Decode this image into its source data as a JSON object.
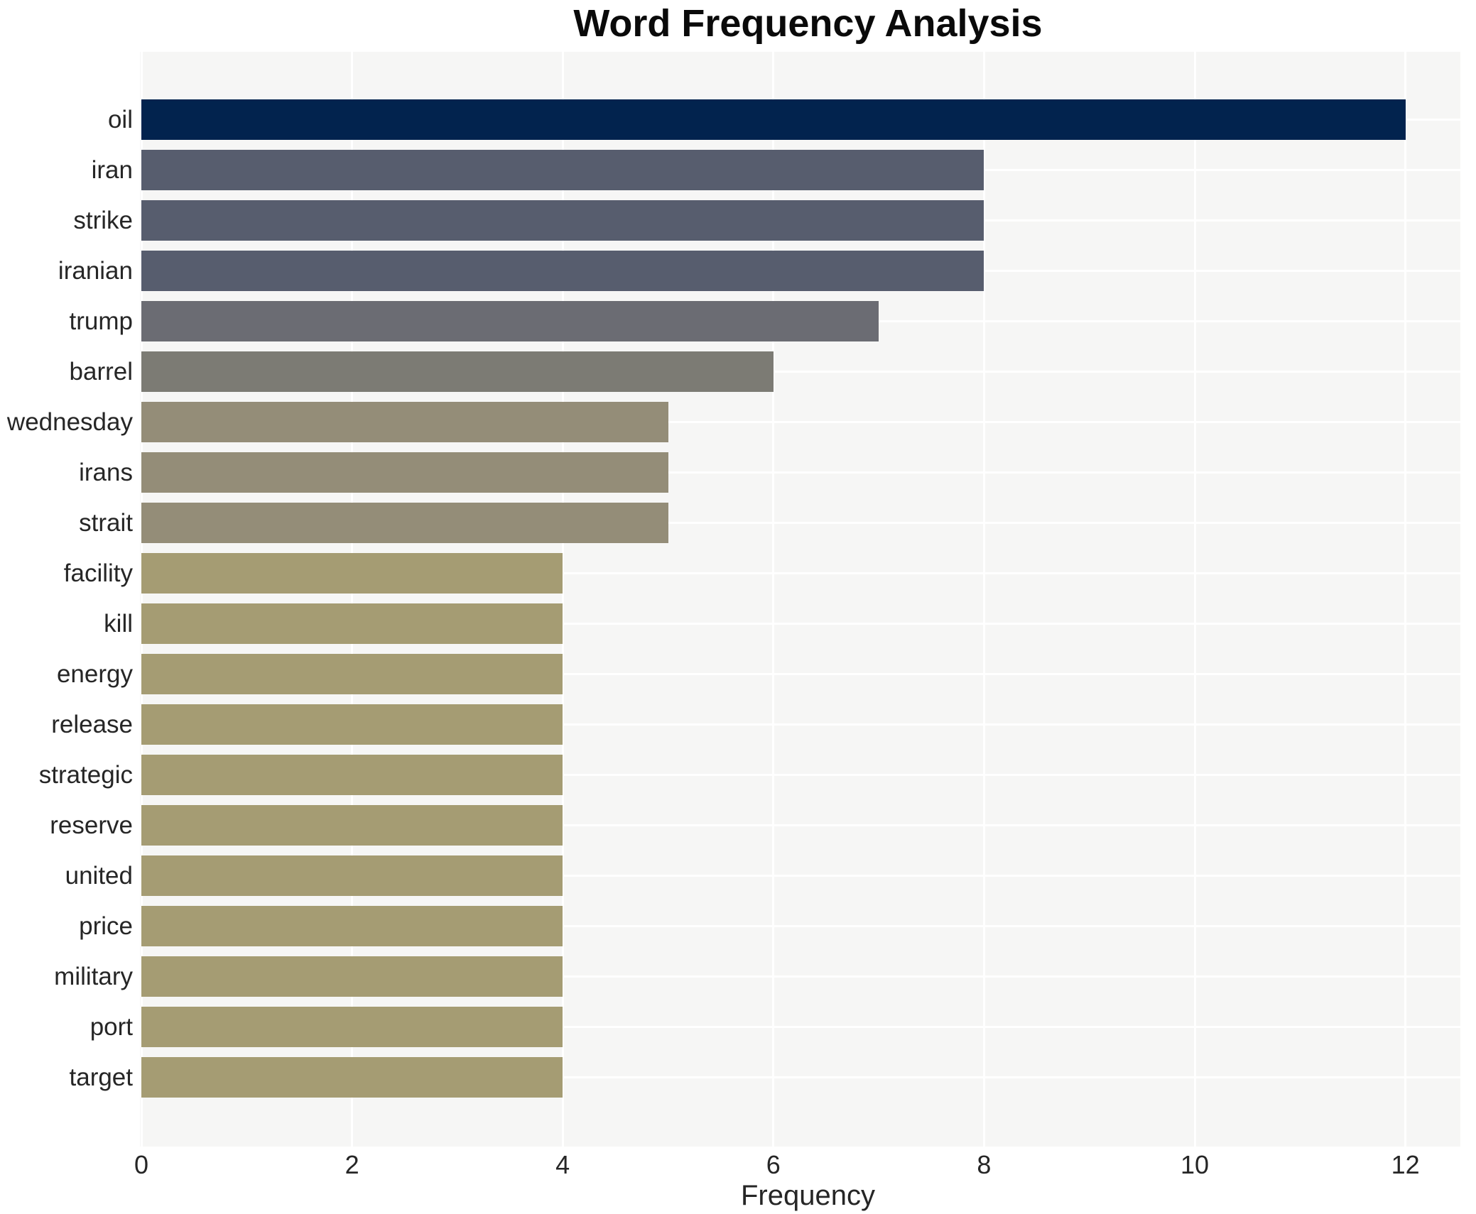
{
  "figure": {
    "title": "Word Frequency Analysis",
    "xlabel": "Frequency"
  },
  "chart_data": {
    "type": "bar",
    "orientation": "horizontal",
    "title": "Word Frequency Analysis",
    "xlabel": "Frequency",
    "ylabel": "",
    "categories": [
      "oil",
      "iran",
      "strike",
      "iranian",
      "trump",
      "barrel",
      "wednesday",
      "irans",
      "strait",
      "facility",
      "kill",
      "energy",
      "release",
      "strategic",
      "reserve",
      "united",
      "price",
      "military",
      "port",
      "target"
    ],
    "values": [
      12,
      8,
      8,
      8,
      7,
      6,
      5,
      5,
      5,
      4,
      4,
      4,
      4,
      4,
      4,
      4,
      4,
      4,
      4,
      4
    ],
    "bar_colors": [
      "#02234e",
      "#575d6e",
      "#575d6e",
      "#575d6e",
      "#6b6c73",
      "#7c7b74",
      "#948d78",
      "#948d78",
      "#948d78",
      "#a59c73",
      "#a59c73",
      "#a59c73",
      "#a59c73",
      "#a59c73",
      "#a59c73",
      "#a59c73",
      "#a59c73",
      "#a59c73",
      "#a59c73",
      "#a59c73"
    ],
    "xlim": [
      0,
      12.6
    ],
    "xticks": [
      0,
      2,
      4,
      6,
      8,
      10,
      12
    ],
    "xtick_labels": [
      "0",
      "2",
      "4",
      "6",
      "8",
      "10",
      "12"
    ],
    "grid": true,
    "grid_color": "#ffffff",
    "plot_background": "#f6f6f5",
    "figure_background": "#ffffff",
    "text_color": "#262626",
    "legend": false
  }
}
